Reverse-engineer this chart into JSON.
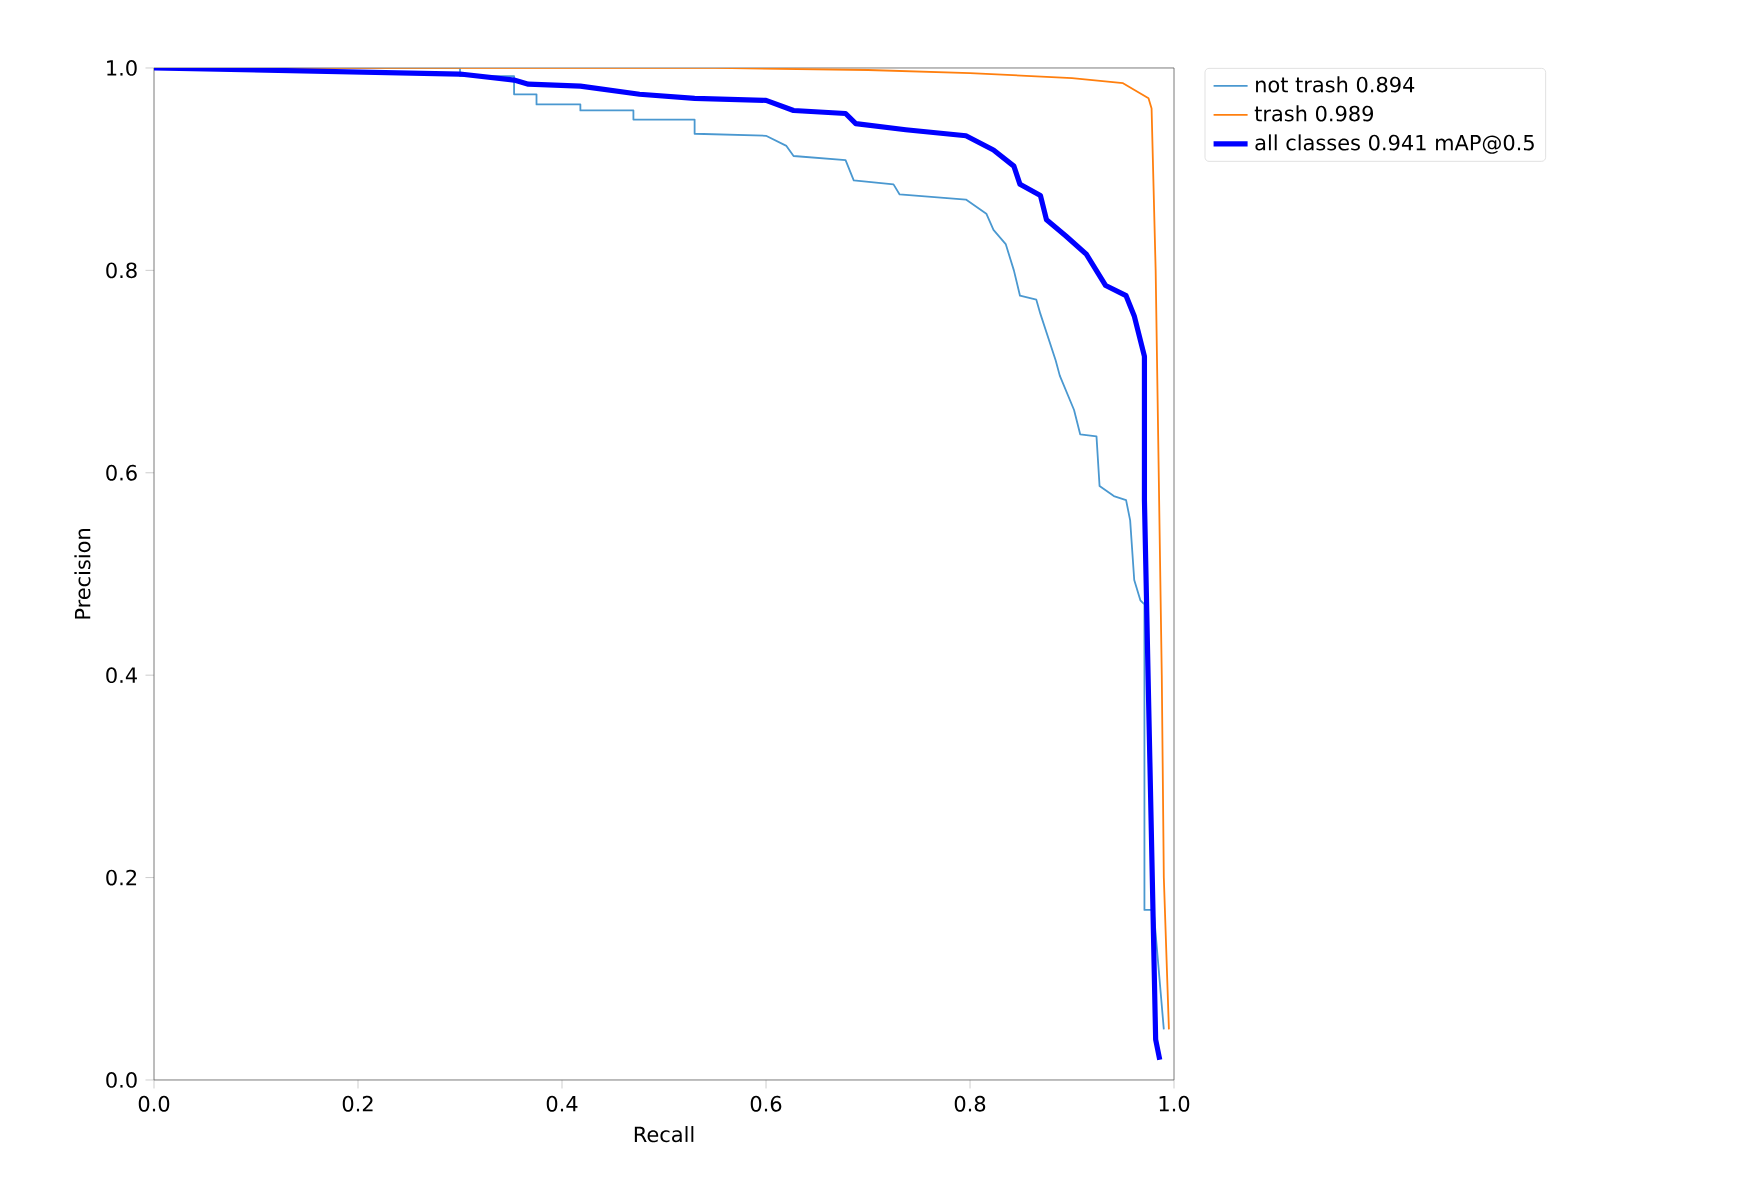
{
  "chart_data": {
    "type": "line",
    "xlabel": "Recall",
    "ylabel": "Precision",
    "xlim": [
      0,
      1
    ],
    "ylim": [
      0,
      1
    ],
    "xticks": [
      {
        "value": 0,
        "label": "0.0"
      },
      {
        "value": 0.2,
        "label": "0.2"
      },
      {
        "value": 0.4,
        "label": "0.4"
      },
      {
        "value": 0.6,
        "label": "0.6"
      },
      {
        "value": 0.8,
        "label": "0.8"
      },
      {
        "value": 1,
        "label": "1.0"
      }
    ],
    "yticks": [
      {
        "value": 0,
        "label": "0.0"
      },
      {
        "value": 0.2,
        "label": "0.2"
      },
      {
        "value": 0.4,
        "label": "0.4"
      },
      {
        "value": 0.6,
        "label": "0.6"
      },
      {
        "value": 0.8,
        "label": "0.8"
      },
      {
        "value": 1,
        "label": "1.0"
      }
    ],
    "legend": "top right",
    "grid": false,
    "marker": "none",
    "line_style": "solid",
    "series": [
      {
        "name": "not trash 0.894",
        "color": "#4a98d0",
        "x": [
          0,
          0.3,
          0.3,
          0.353,
          0.353,
          0.375,
          0.375,
          0.418,
          0.418,
          0.47,
          0.47,
          0.53,
          0.53,
          0.6,
          0.62,
          0.627,
          0.678,
          0.686,
          0.725,
          0.731,
          0.796,
          0.816,
          0.823,
          0.835,
          0.843,
          0.849,
          0.865,
          0.869,
          0.884,
          0.888,
          0.902,
          0.908,
          0.924,
          0.927,
          0.941,
          0.953,
          0.957,
          0.961,
          0.967,
          0.971,
          0.971,
          0.98,
          0.99
        ],
        "values": [
          1,
          1,
          0.992,
          0.992,
          0.974,
          0.974,
          0.964,
          0.964,
          0.958,
          0.958,
          0.949,
          0.949,
          0.935,
          0.933,
          0.923,
          0.913,
          0.909,
          0.889,
          0.885,
          0.875,
          0.87,
          0.856,
          0.84,
          0.826,
          0.8,
          0.775,
          0.771,
          0.757,
          0.711,
          0.696,
          0.662,
          0.638,
          0.636,
          0.587,
          0.577,
          0.573,
          0.553,
          0.494,
          0.474,
          0.47,
          0.168,
          0.168,
          0.05
        ]
      },
      {
        "name": "trash 0.989",
        "color": "#ff7f0e",
        "x": [
          0,
          0.55,
          0.7,
          0.8,
          0.9,
          0.95,
          0.975,
          0.978,
          0.982,
          0.985,
          0.988,
          0.99,
          0.995
        ],
        "values": [
          1,
          1,
          0.998,
          0.995,
          0.99,
          0.985,
          0.97,
          0.96,
          0.8,
          0.6,
          0.4,
          0.2,
          0.05
        ]
      },
      {
        "name": "all classes 0.941 mAP@0.5",
        "color": "#0000ff",
        "x": [
          0,
          0.3,
          0.353,
          0.367,
          0.418,
          0.476,
          0.53,
          0.6,
          0.627,
          0.678,
          0.688,
          0.737,
          0.796,
          0.823,
          0.843,
          0.849,
          0.869,
          0.875,
          0.894,
          0.914,
          0.933,
          0.953,
          0.961,
          0.971,
          0.971,
          0.982,
          0.986
        ],
        "values": [
          1,
          0.994,
          0.988,
          0.984,
          0.982,
          0.974,
          0.97,
          0.968,
          0.958,
          0.955,
          0.945,
          0.939,
          0.933,
          0.919,
          0.903,
          0.885,
          0.874,
          0.85,
          0.834,
          0.816,
          0.785,
          0.775,
          0.755,
          0.715,
          0.573,
          0.04,
          0.02
        ]
      }
    ]
  }
}
